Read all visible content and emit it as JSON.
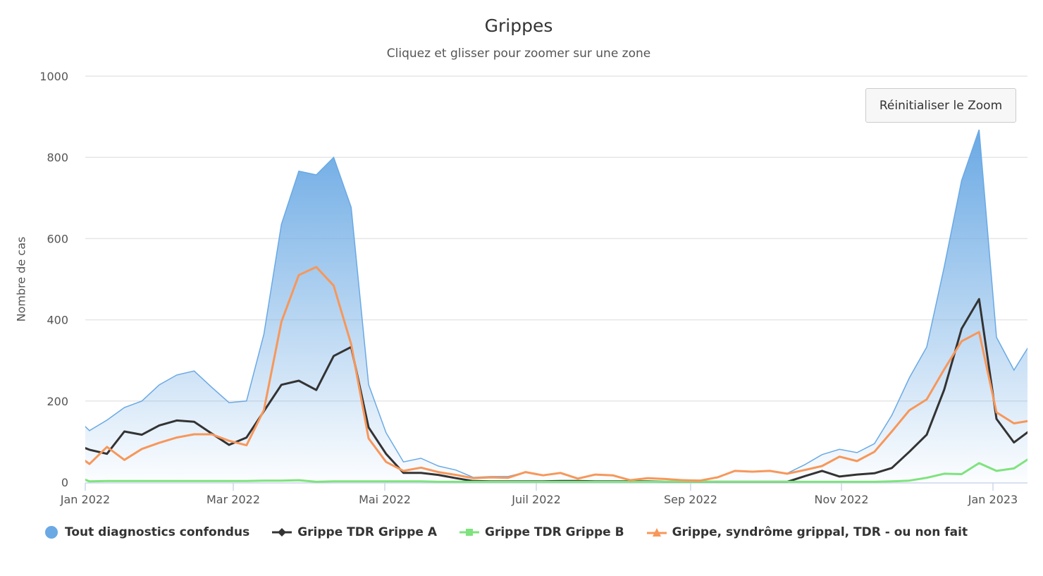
{
  "chart": {
    "title": "Grippes",
    "subtitle": "Cliquez et glisser pour zoomer sur une zone",
    "reset_zoom_label": "Réinitialiser le Zoom"
  },
  "legend": [
    {
      "label": "Tout diagnostics confondus",
      "color": "#6aa9e4",
      "symbol": "circle"
    },
    {
      "label": "Grippe TDR Grippe A",
      "color": "#333333",
      "symbol": "diamond"
    },
    {
      "label": "Grippe TDR Grippe B",
      "color": "#7ee37e",
      "symbol": "square"
    },
    {
      "label": "Grippe, syndrôme grippal, TDR - ou non fait",
      "color": "#f7975a",
      "symbol": "triangle"
    }
  ],
  "chart_data": {
    "type": "line",
    "title": "Grippes",
    "subtitle": "Cliquez et glisser pour zoomer sur une zone",
    "xlabel": "",
    "ylabel": "Nombre de cas",
    "ylim": [
      0,
      1000
    ],
    "yticks": [
      0,
      200,
      400,
      600,
      800,
      1000
    ],
    "xticks": [
      "Jan 2022",
      "Mar 2022",
      "Mai 2022",
      "Juil 2022",
      "Sep 2022",
      "Nov 2022",
      "Jan 2023"
    ],
    "grid": true,
    "legend_position": "bottom",
    "x_interval": "weekly",
    "series": [
      {
        "name": "Tout diagnostics confondus",
        "type": "area",
        "color": "#6aa9e4",
        "values": [
          127,
          153,
          184,
          200,
          240,
          264,
          274,
          234,
          196,
          200,
          365,
          635,
          766,
          757,
          800,
          677,
          241,
          122,
          50,
          59,
          40,
          30,
          12,
          14,
          14,
          25,
          17,
          24,
          9,
          18,
          16,
          5,
          10,
          8,
          6,
          5,
          12,
          28,
          26,
          27,
          22,
          43,
          68,
          81,
          73,
          95,
          165,
          257,
          333,
          530,
          743,
          868,
          357,
          276,
          345
        ]
      },
      {
        "name": "Grippe TDR Grippe A",
        "type": "line",
        "color": "#333333",
        "values": [
          80,
          70,
          125,
          117,
          140,
          152,
          149,
          120,
          92,
          110,
          175,
          240,
          250,
          227,
          311,
          333,
          135,
          70,
          23,
          23,
          18,
          10,
          3,
          2,
          2,
          2,
          2,
          3,
          3,
          2,
          2,
          2,
          2,
          1,
          1,
          1,
          1,
          1,
          1,
          1,
          1,
          15,
          28,
          14,
          19,
          22,
          35,
          75,
          117,
          228,
          378,
          451,
          156,
          98,
          130
        ]
      },
      {
        "name": "Grippe TDR Grippe B",
        "type": "line",
        "color": "#7ee37e",
        "values": [
          2,
          3,
          3,
          3,
          3,
          3,
          3,
          3,
          3,
          3,
          4,
          4,
          5,
          1,
          2,
          2,
          2,
          2,
          2,
          2,
          1,
          1,
          1,
          1,
          1,
          1,
          1,
          1,
          1,
          1,
          1,
          1,
          1,
          1,
          1,
          1,
          1,
          1,
          1,
          1,
          1,
          1,
          1,
          1,
          1,
          1,
          2,
          4,
          11,
          21,
          20,
          47,
          28,
          34,
          62
        ]
      },
      {
        "name": "Grippe, syndrôme grippal, TDR - ou non fait",
        "type": "line",
        "color": "#f7975a",
        "values": [
          45,
          87,
          55,
          82,
          97,
          110,
          118,
          118,
          102,
          91,
          178,
          395,
          510,
          530,
          484,
          340,
          108,
          50,
          28,
          36,
          25,
          18,
          10,
          12,
          11,
          25,
          17,
          23,
          9,
          19,
          17,
          5,
          10,
          8,
          5,
          4,
          12,
          28,
          26,
          28,
          21,
          30,
          40,
          63,
          52,
          75,
          125,
          177,
          204,
          278,
          347,
          370,
          172,
          145,
          152
        ]
      }
    ]
  }
}
